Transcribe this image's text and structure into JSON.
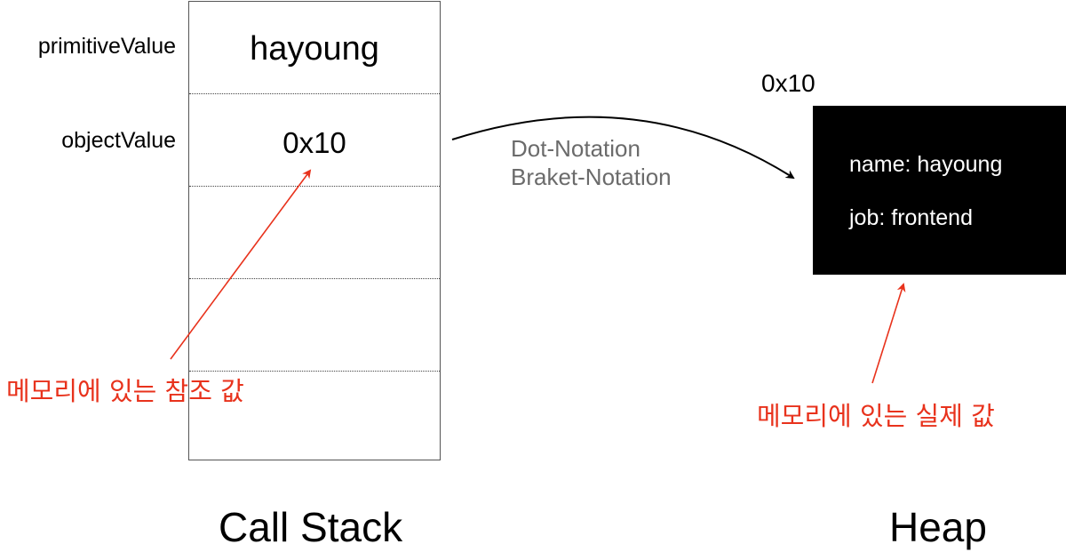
{
  "variables": {
    "primitive_name": "primitiveValue",
    "object_name": "objectValue"
  },
  "call_stack": {
    "title": "Call Stack",
    "cells": [
      "hayoung",
      "0x10",
      "",
      "",
      ""
    ]
  },
  "heap": {
    "title": "Heap",
    "address": "0x10",
    "properties": [
      "name: hayoung",
      "job: frontend"
    ]
  },
  "access": {
    "dot_notation": "Dot-Notation",
    "bracket_notation": "Braket-Notation"
  },
  "annotations": {
    "reference_value": "메모리에 있는 참조 값",
    "actual_value": "메모리에 있는 실제 값"
  },
  "colors": {
    "annotation": "#e8321c",
    "heap_box": "#000000",
    "notation_text": "#6b6b6b"
  }
}
